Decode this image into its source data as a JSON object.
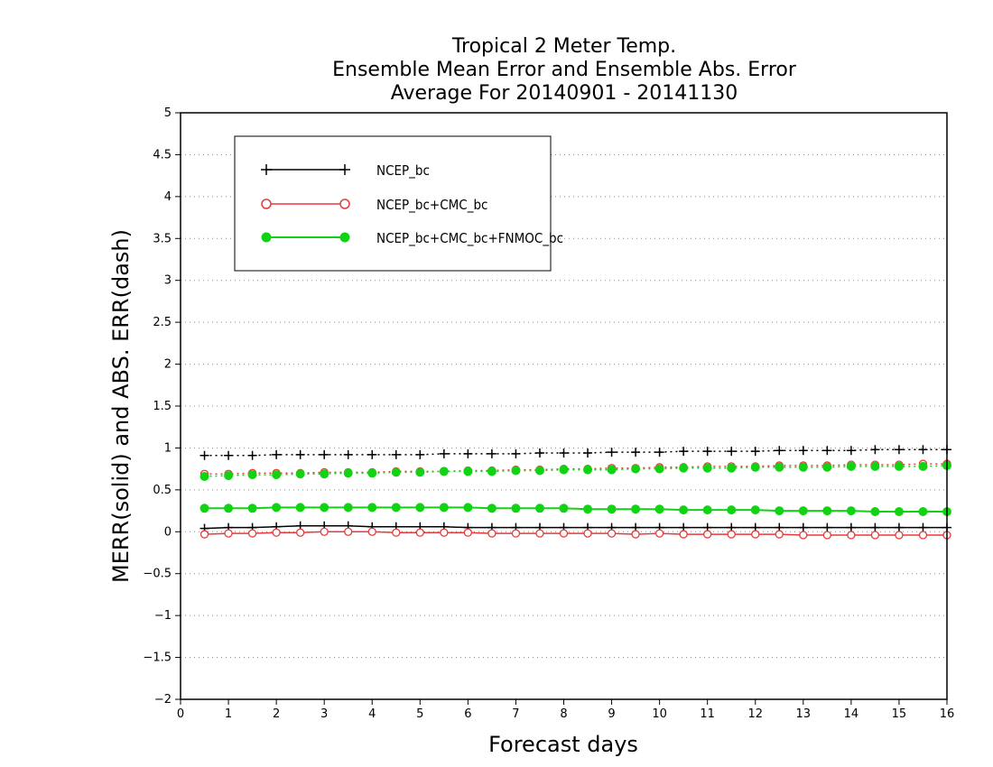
{
  "colors": {
    "ncep": "#000000",
    "ncep_cmc": "#e8393b",
    "ncep_cmc_fnmoc": "#11d313"
  },
  "chart_data": {
    "type": "line",
    "title_lines": [
      "Tropical 2 Meter Temp.",
      "Ensemble Mean Error and Ensemble Abs. Error",
      "Average For 20140901 - 20141130"
    ],
    "xlabel": "Forecast days",
    "ylabel": "MERR(solid) and ABS. ERR(dash)",
    "xlim": [
      0,
      16
    ],
    "ylim": [
      -2,
      5
    ],
    "x_ticks": [
      "0",
      "1",
      "2",
      "3",
      "4",
      "5",
      "6",
      "7",
      "8",
      "9",
      "10",
      "11",
      "12",
      "13",
      "14",
      "15",
      "16"
    ],
    "y_ticks": [
      "−2",
      "−1.5",
      "−1",
      "−0.5",
      "0",
      "0.5",
      "1",
      "1.5",
      "2",
      "2.5",
      "3",
      "3.5",
      "4",
      "4.5",
      "5"
    ],
    "grid": "horizontal dotted",
    "legend_position": "top-left",
    "x": [
      0.5,
      1,
      1.5,
      2,
      2.5,
      3,
      3.5,
      4,
      4.5,
      5,
      5.5,
      6,
      6.5,
      7,
      7.5,
      8,
      8.5,
      9,
      9.5,
      10,
      10.5,
      11,
      11.5,
      12,
      12.5,
      13,
      13.5,
      14,
      14.5,
      15,
      15.5,
      16
    ],
    "series": [
      {
        "name": "NCEP_bc",
        "color_key": "ncep",
        "marker": "plus",
        "merr": [
          0.04,
          0.05,
          0.05,
          0.06,
          0.07,
          0.07,
          0.07,
          0.06,
          0.06,
          0.06,
          0.06,
          0.05,
          0.05,
          0.05,
          0.05,
          0.05,
          0.05,
          0.05,
          0.05,
          0.05,
          0.05,
          0.05,
          0.05,
          0.05,
          0.05,
          0.05,
          0.05,
          0.05,
          0.05,
          0.05,
          0.05,
          0.05
        ],
        "abs_err": [
          0.91,
          0.91,
          0.91,
          0.92,
          0.92,
          0.92,
          0.92,
          0.92,
          0.92,
          0.92,
          0.93,
          0.93,
          0.93,
          0.93,
          0.94,
          0.94,
          0.94,
          0.95,
          0.95,
          0.95,
          0.96,
          0.96,
          0.96,
          0.96,
          0.97,
          0.97,
          0.97,
          0.97,
          0.98,
          0.98,
          0.98,
          0.98
        ]
      },
      {
        "name": "NCEP_bc+CMC_bc",
        "color_key": "ncep_cmc",
        "marker": "open-circle",
        "merr": [
          -0.03,
          -0.02,
          -0.02,
          -0.01,
          -0.01,
          0.0,
          0.0,
          0.0,
          -0.01,
          -0.01,
          -0.01,
          -0.01,
          -0.02,
          -0.02,
          -0.02,
          -0.02,
          -0.02,
          -0.02,
          -0.03,
          -0.02,
          -0.03,
          -0.03,
          -0.03,
          -0.03,
          -0.03,
          -0.04,
          -0.04,
          -0.04,
          -0.04,
          -0.04,
          -0.04,
          -0.04
        ],
        "abs_err": [
          0.69,
          0.69,
          0.7,
          0.7,
          0.7,
          0.71,
          0.71,
          0.71,
          0.72,
          0.72,
          0.72,
          0.73,
          0.73,
          0.74,
          0.74,
          0.75,
          0.75,
          0.76,
          0.76,
          0.77,
          0.77,
          0.78,
          0.78,
          0.78,
          0.79,
          0.79,
          0.79,
          0.8,
          0.8,
          0.8,
          0.81,
          0.81
        ]
      },
      {
        "name": "NCEP_bc+CMC_bc+FNMOC_bc",
        "color_key": "ncep_cmc_fnmoc",
        "marker": "filled-circle",
        "merr": [
          0.28,
          0.28,
          0.28,
          0.29,
          0.29,
          0.29,
          0.29,
          0.29,
          0.29,
          0.29,
          0.29,
          0.29,
          0.28,
          0.28,
          0.28,
          0.28,
          0.27,
          0.27,
          0.27,
          0.27,
          0.26,
          0.26,
          0.26,
          0.26,
          0.25,
          0.25,
          0.25,
          0.25,
          0.24,
          0.24,
          0.24,
          0.24
        ],
        "abs_err": [
          0.66,
          0.67,
          0.68,
          0.68,
          0.69,
          0.69,
          0.7,
          0.7,
          0.71,
          0.71,
          0.72,
          0.72,
          0.72,
          0.73,
          0.73,
          0.74,
          0.74,
          0.74,
          0.75,
          0.75,
          0.76,
          0.76,
          0.76,
          0.77,
          0.77,
          0.77,
          0.77,
          0.78,
          0.78,
          0.78,
          0.78,
          0.79
        ]
      }
    ]
  }
}
